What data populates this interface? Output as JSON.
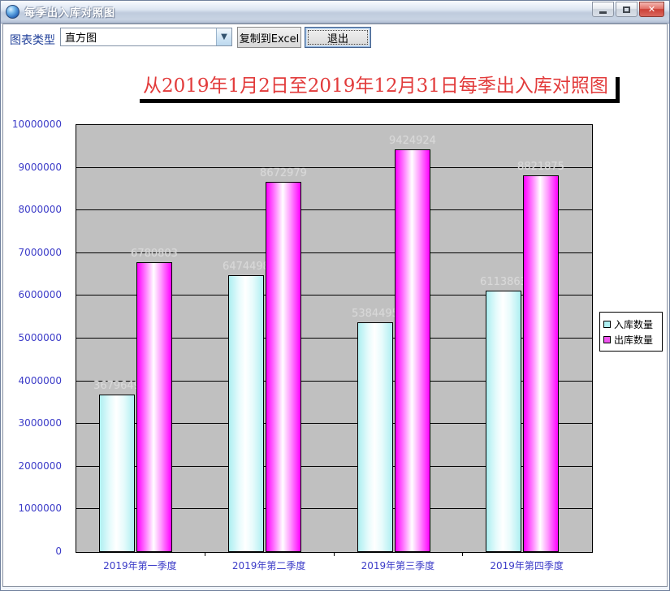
{
  "window": {
    "title": "每季出入库对照图"
  },
  "toolbar": {
    "chart_type_label": "图表类型",
    "chart_type_value": "直方图",
    "copy_button": "复制到Excel",
    "exit_button": "退出"
  },
  "chart_data": {
    "type": "bar",
    "title": "从2019年1月2日至2019年12月31日每季出入库对照图",
    "categories": [
      "2019年第一季度",
      "2019年第二季度",
      "2019年第三季度",
      "2019年第四季度"
    ],
    "series": [
      {
        "name": "入库数量",
        "legend_color": "#aeeff1",
        "values": [
          3679649,
          6474498,
          5384495,
          6113863
        ]
      },
      {
        "name": "出库数量",
        "legend_color": "#f055f0",
        "values": [
          6780803,
          8672979,
          9424924,
          8821875
        ]
      }
    ],
    "ylim": [
      0,
      10000000
    ],
    "ytick_step": 1000000,
    "yticks": [
      "0",
      "1000000",
      "2000000",
      "3000000",
      "4000000",
      "5000000",
      "6000000",
      "7000000",
      "8000000",
      "9000000",
      "10000000"
    ],
    "grid": true,
    "legend_position": "right",
    "plot_background": "#c0c0c0",
    "value_label_color": "#d8d8d8",
    "axis_label_color": "#3c3cc8",
    "title_color": "#e23b3b"
  }
}
